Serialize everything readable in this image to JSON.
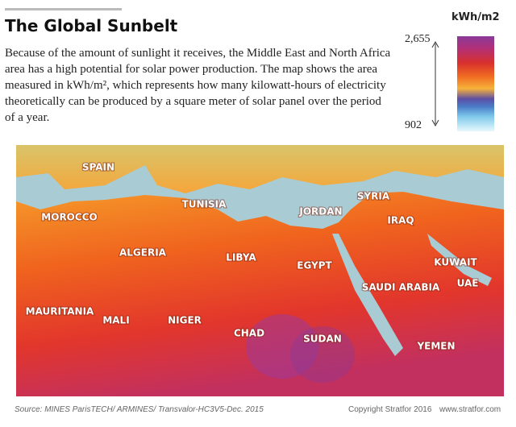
{
  "header": {
    "title": "The Global Sunbelt"
  },
  "description": "Because of the amount of sunlight it receives, the Middle East and North Africa area has a high potential for solar power production. The map shows the area measured in kWh/m², which represents how many kilowatt-hours of electricity theoretically can be produced by a square meter of solar panel over the period of a year.",
  "legend": {
    "unit": "kWh/m2",
    "max": "2,655",
    "min": "902"
  },
  "map": {
    "labels": [
      "SPAIN",
      "MOROCCO",
      "TUNISIA",
      "ALGERIA",
      "LIBYA",
      "EGYPT",
      "JORDAN",
      "SYRIA",
      "IRAQ",
      "KUWAIT",
      "UAE",
      "SAUDI ARABIA",
      "MAURITANIA",
      "MALI",
      "NIGER",
      "CHAD",
      "SUDAN",
      "YEMEN"
    ]
  },
  "footer": {
    "source": "Source: MINES ParisTECH/ ARMINES/ Transvalor-HC3V5-Dec. 2015",
    "copyright": "Copyright Stratfor 2016",
    "website": "www.stratfor.com"
  }
}
